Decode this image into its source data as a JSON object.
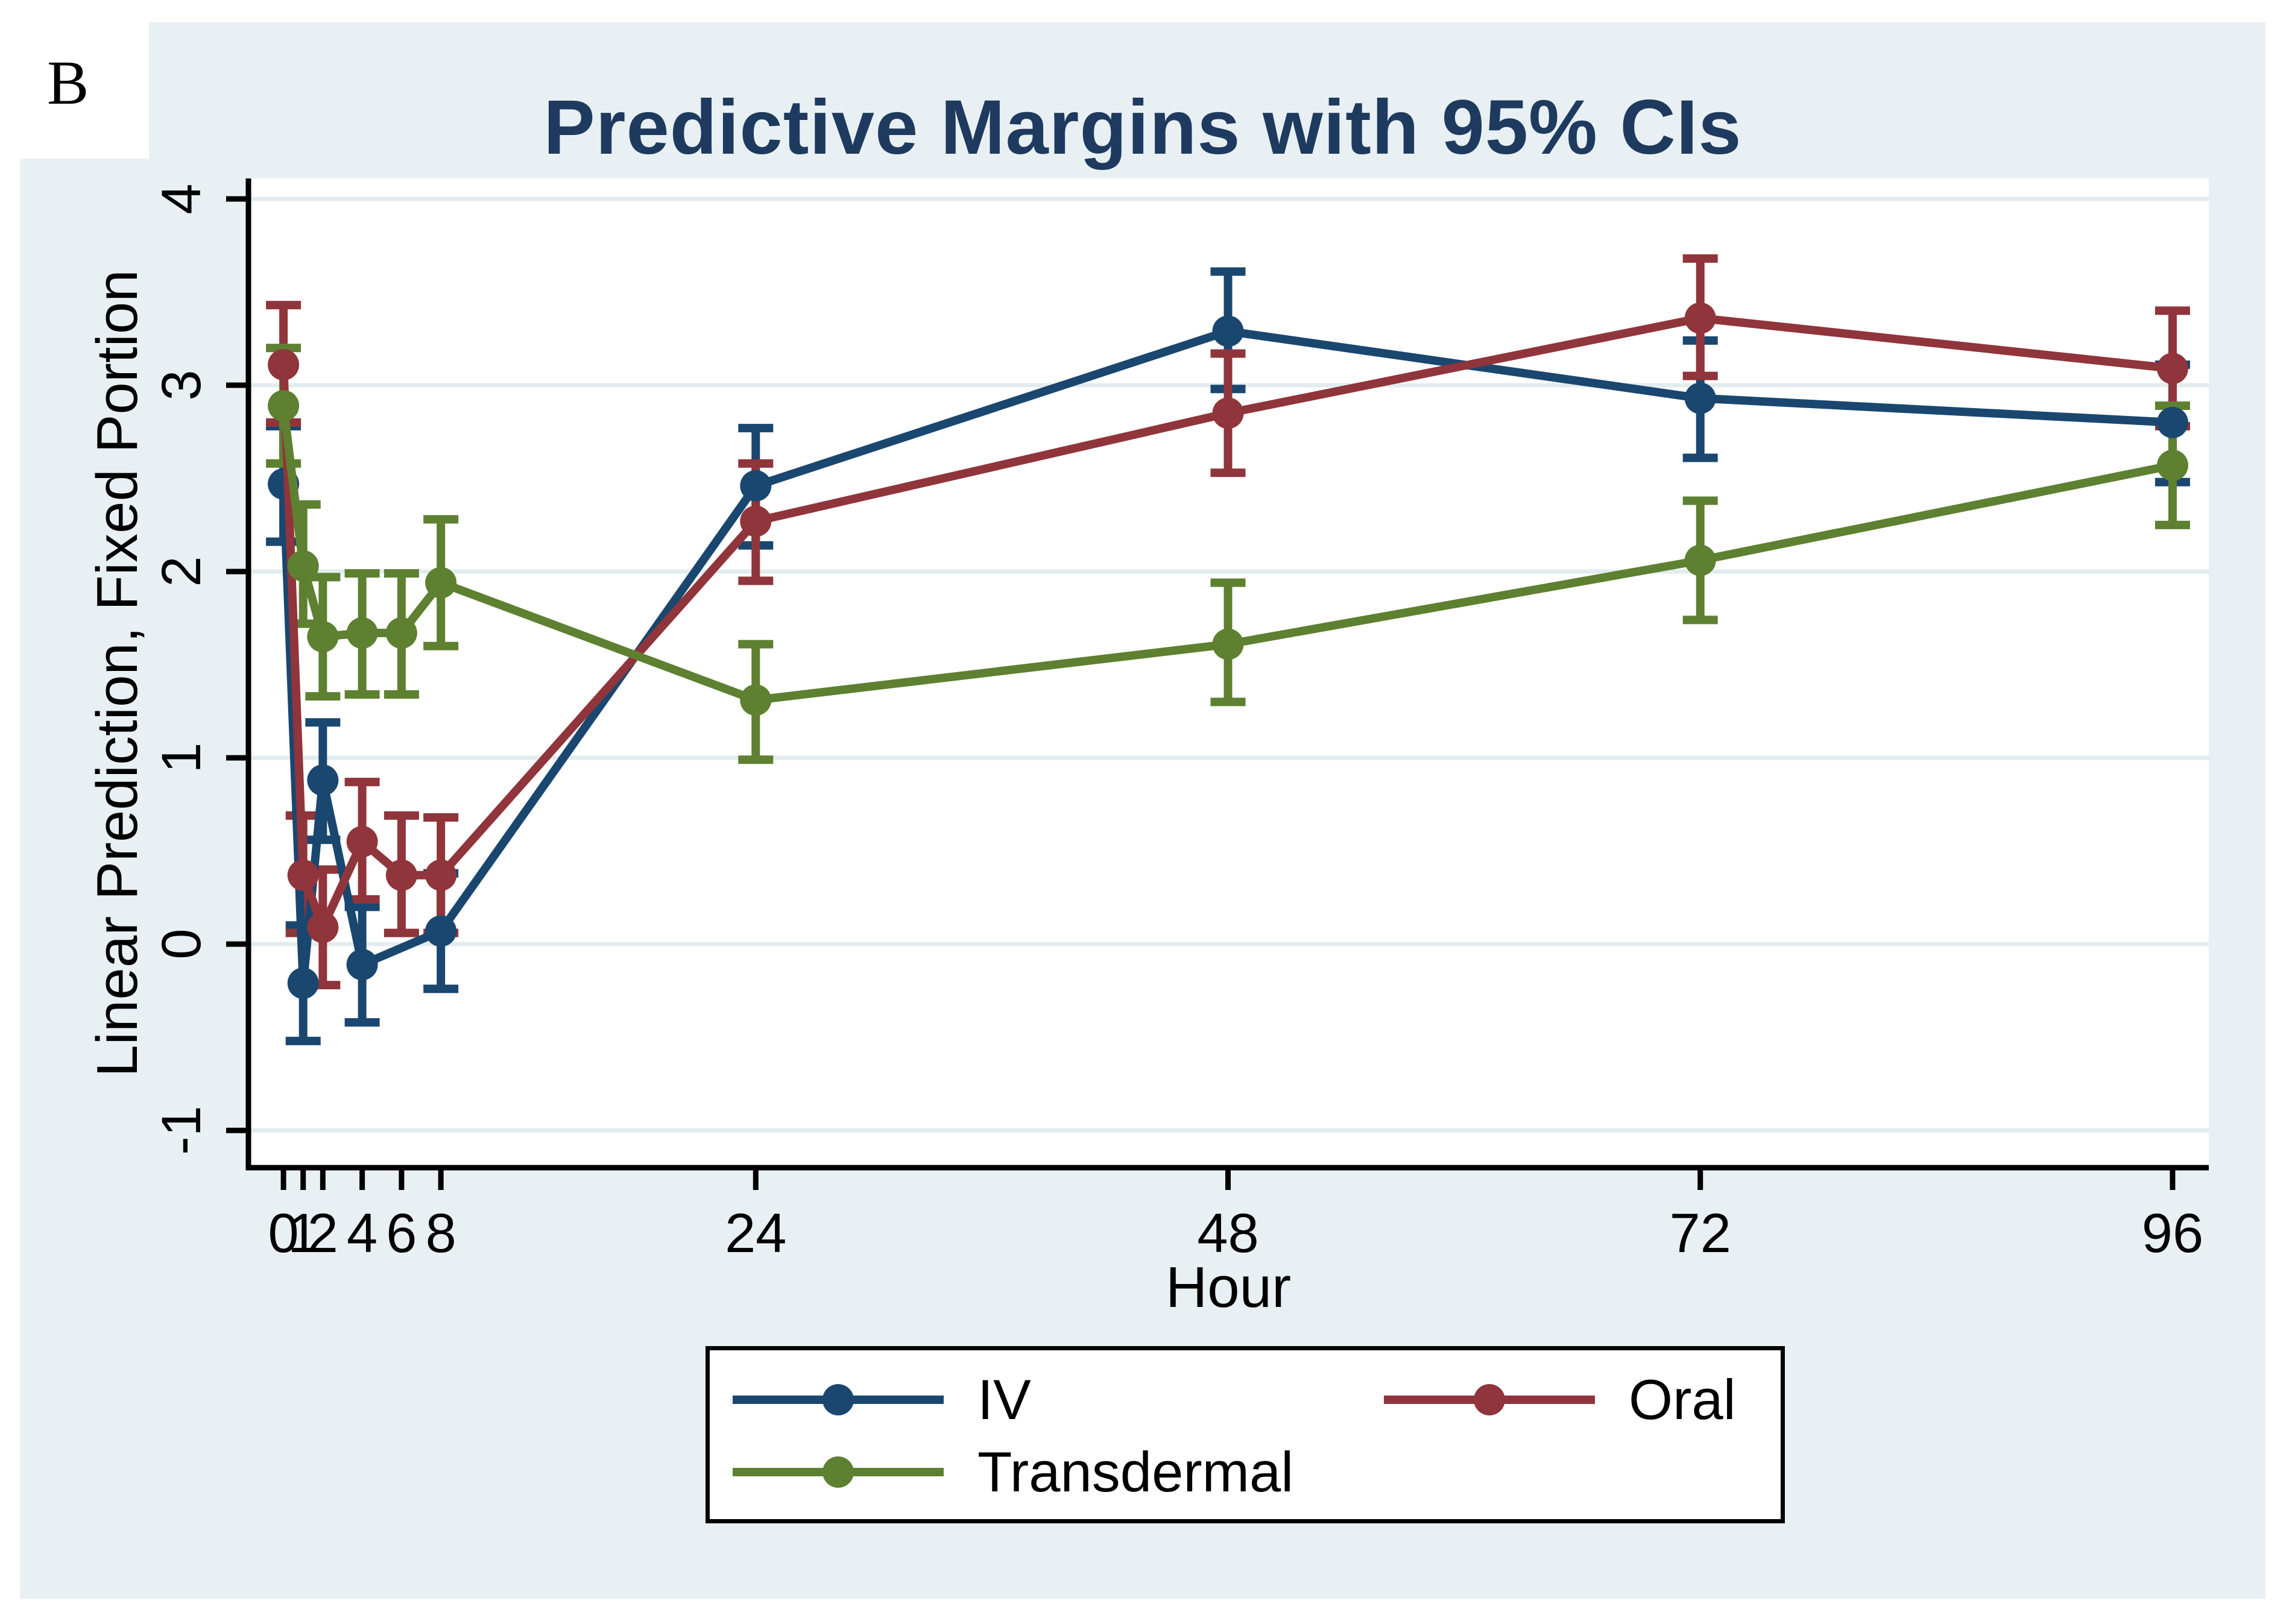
{
  "panel_label": "B",
  "chart_data": {
    "type": "line",
    "title": "Predictive Margins with 95% CIs",
    "xlabel": "Hour",
    "ylabel": "Linear Prediction, Fixed Portion",
    "legend_position": "bottom-box-2col",
    "grid": "horizontal",
    "xlim": [
      -1.78,
      97.84
    ],
    "ylim": [
      -1.2,
      4.11
    ],
    "xtick_values": [
      0,
      1,
      2,
      4,
      6,
      8,
      24,
      48,
      72,
      96
    ],
    "xtick_labels": [
      "0",
      "1",
      "2",
      "4",
      "6",
      "8",
      "24",
      "48",
      "72",
      "96"
    ],
    "ytick_values": [
      -1,
      0,
      1,
      2,
      3,
      4
    ],
    "ytick_labels": [
      "-1",
      "0",
      "1",
      "2",
      "3",
      "4"
    ],
    "colors": {
      "background": "#E9F0F3",
      "plot_background": "#FFFFFF",
      "gridline": "#E2ECEF",
      "axis": "#000000",
      "title": "#1E3A5F"
    },
    "series": [
      {
        "name": "IV",
        "color": "#1A476F",
        "points": [
          {
            "x": 0,
            "y": 2.47,
            "lo": 2.16,
            "hi": 2.78
          },
          {
            "x": 1,
            "y": -0.21,
            "lo": -0.52,
            "hi": 0.1
          },
          {
            "x": 2,
            "y": 0.88,
            "lo": 0.56,
            "hi": 1.19
          },
          {
            "x": 4,
            "y": -0.11,
            "lo": -0.42,
            "hi": 0.2
          },
          {
            "x": 8,
            "y": 0.07,
            "lo": -0.24,
            "hi": 0.38
          },
          {
            "x": 24,
            "y": 2.46,
            "lo": 2.14,
            "hi": 2.77
          },
          {
            "x": 48,
            "y": 3.29,
            "lo": 2.98,
            "hi": 3.61
          },
          {
            "x": 72,
            "y": 2.93,
            "lo": 2.61,
            "hi": 3.24
          },
          {
            "x": 96,
            "y": 2.8,
            "lo": 2.48,
            "hi": 3.11
          }
        ]
      },
      {
        "name": "Oral",
        "color": "#90353B",
        "points": [
          {
            "x": 0,
            "y": 3.11,
            "lo": 2.8,
            "hi": 3.43
          },
          {
            "x": 1,
            "y": 0.37,
            "lo": 0.06,
            "hi": 0.69
          },
          {
            "x": 2,
            "y": 0.09,
            "lo": -0.22,
            "hi": 0.4
          },
          {
            "x": 4,
            "y": 0.55,
            "lo": 0.24,
            "hi": 0.87
          },
          {
            "x": 6,
            "y": 0.37,
            "lo": 0.06,
            "hi": 0.69
          },
          {
            "x": 8,
            "y": 0.37,
            "lo": 0.06,
            "hi": 0.68
          },
          {
            "x": 24,
            "y": 2.27,
            "lo": 1.95,
            "hi": 2.58
          },
          {
            "x": 48,
            "y": 2.85,
            "lo": 2.53,
            "hi": 3.17
          },
          {
            "x": 72,
            "y": 3.36,
            "lo": 3.05,
            "hi": 3.68
          },
          {
            "x": 96,
            "y": 3.09,
            "lo": 2.78,
            "hi": 3.4
          }
        ]
      },
      {
        "name": "Transdermal",
        "color": "#5E8031",
        "points": [
          {
            "x": 0,
            "y": 2.89,
            "lo": 2.58,
            "hi": 3.2
          },
          {
            "x": 1,
            "y": 2.03,
            "lo": 1.72,
            "hi": 2.36
          },
          {
            "x": 2,
            "y": 1.65,
            "lo": 1.33,
            "hi": 1.97
          },
          {
            "x": 4,
            "y": 1.67,
            "lo": 1.34,
            "hi": 1.99
          },
          {
            "x": 6,
            "y": 1.67,
            "lo": 1.34,
            "hi": 1.99
          },
          {
            "x": 8,
            "y": 1.94,
            "lo": 1.6,
            "hi": 2.28
          },
          {
            "x": 24,
            "y": 1.31,
            "lo": 0.99,
            "hi": 1.61
          },
          {
            "x": 48,
            "y": 1.61,
            "lo": 1.3,
            "hi": 1.94
          },
          {
            "x": 72,
            "y": 2.06,
            "lo": 1.74,
            "hi": 2.38
          },
          {
            "x": 96,
            "y": 2.57,
            "lo": 2.25,
            "hi": 2.89
          }
        ]
      }
    ]
  }
}
